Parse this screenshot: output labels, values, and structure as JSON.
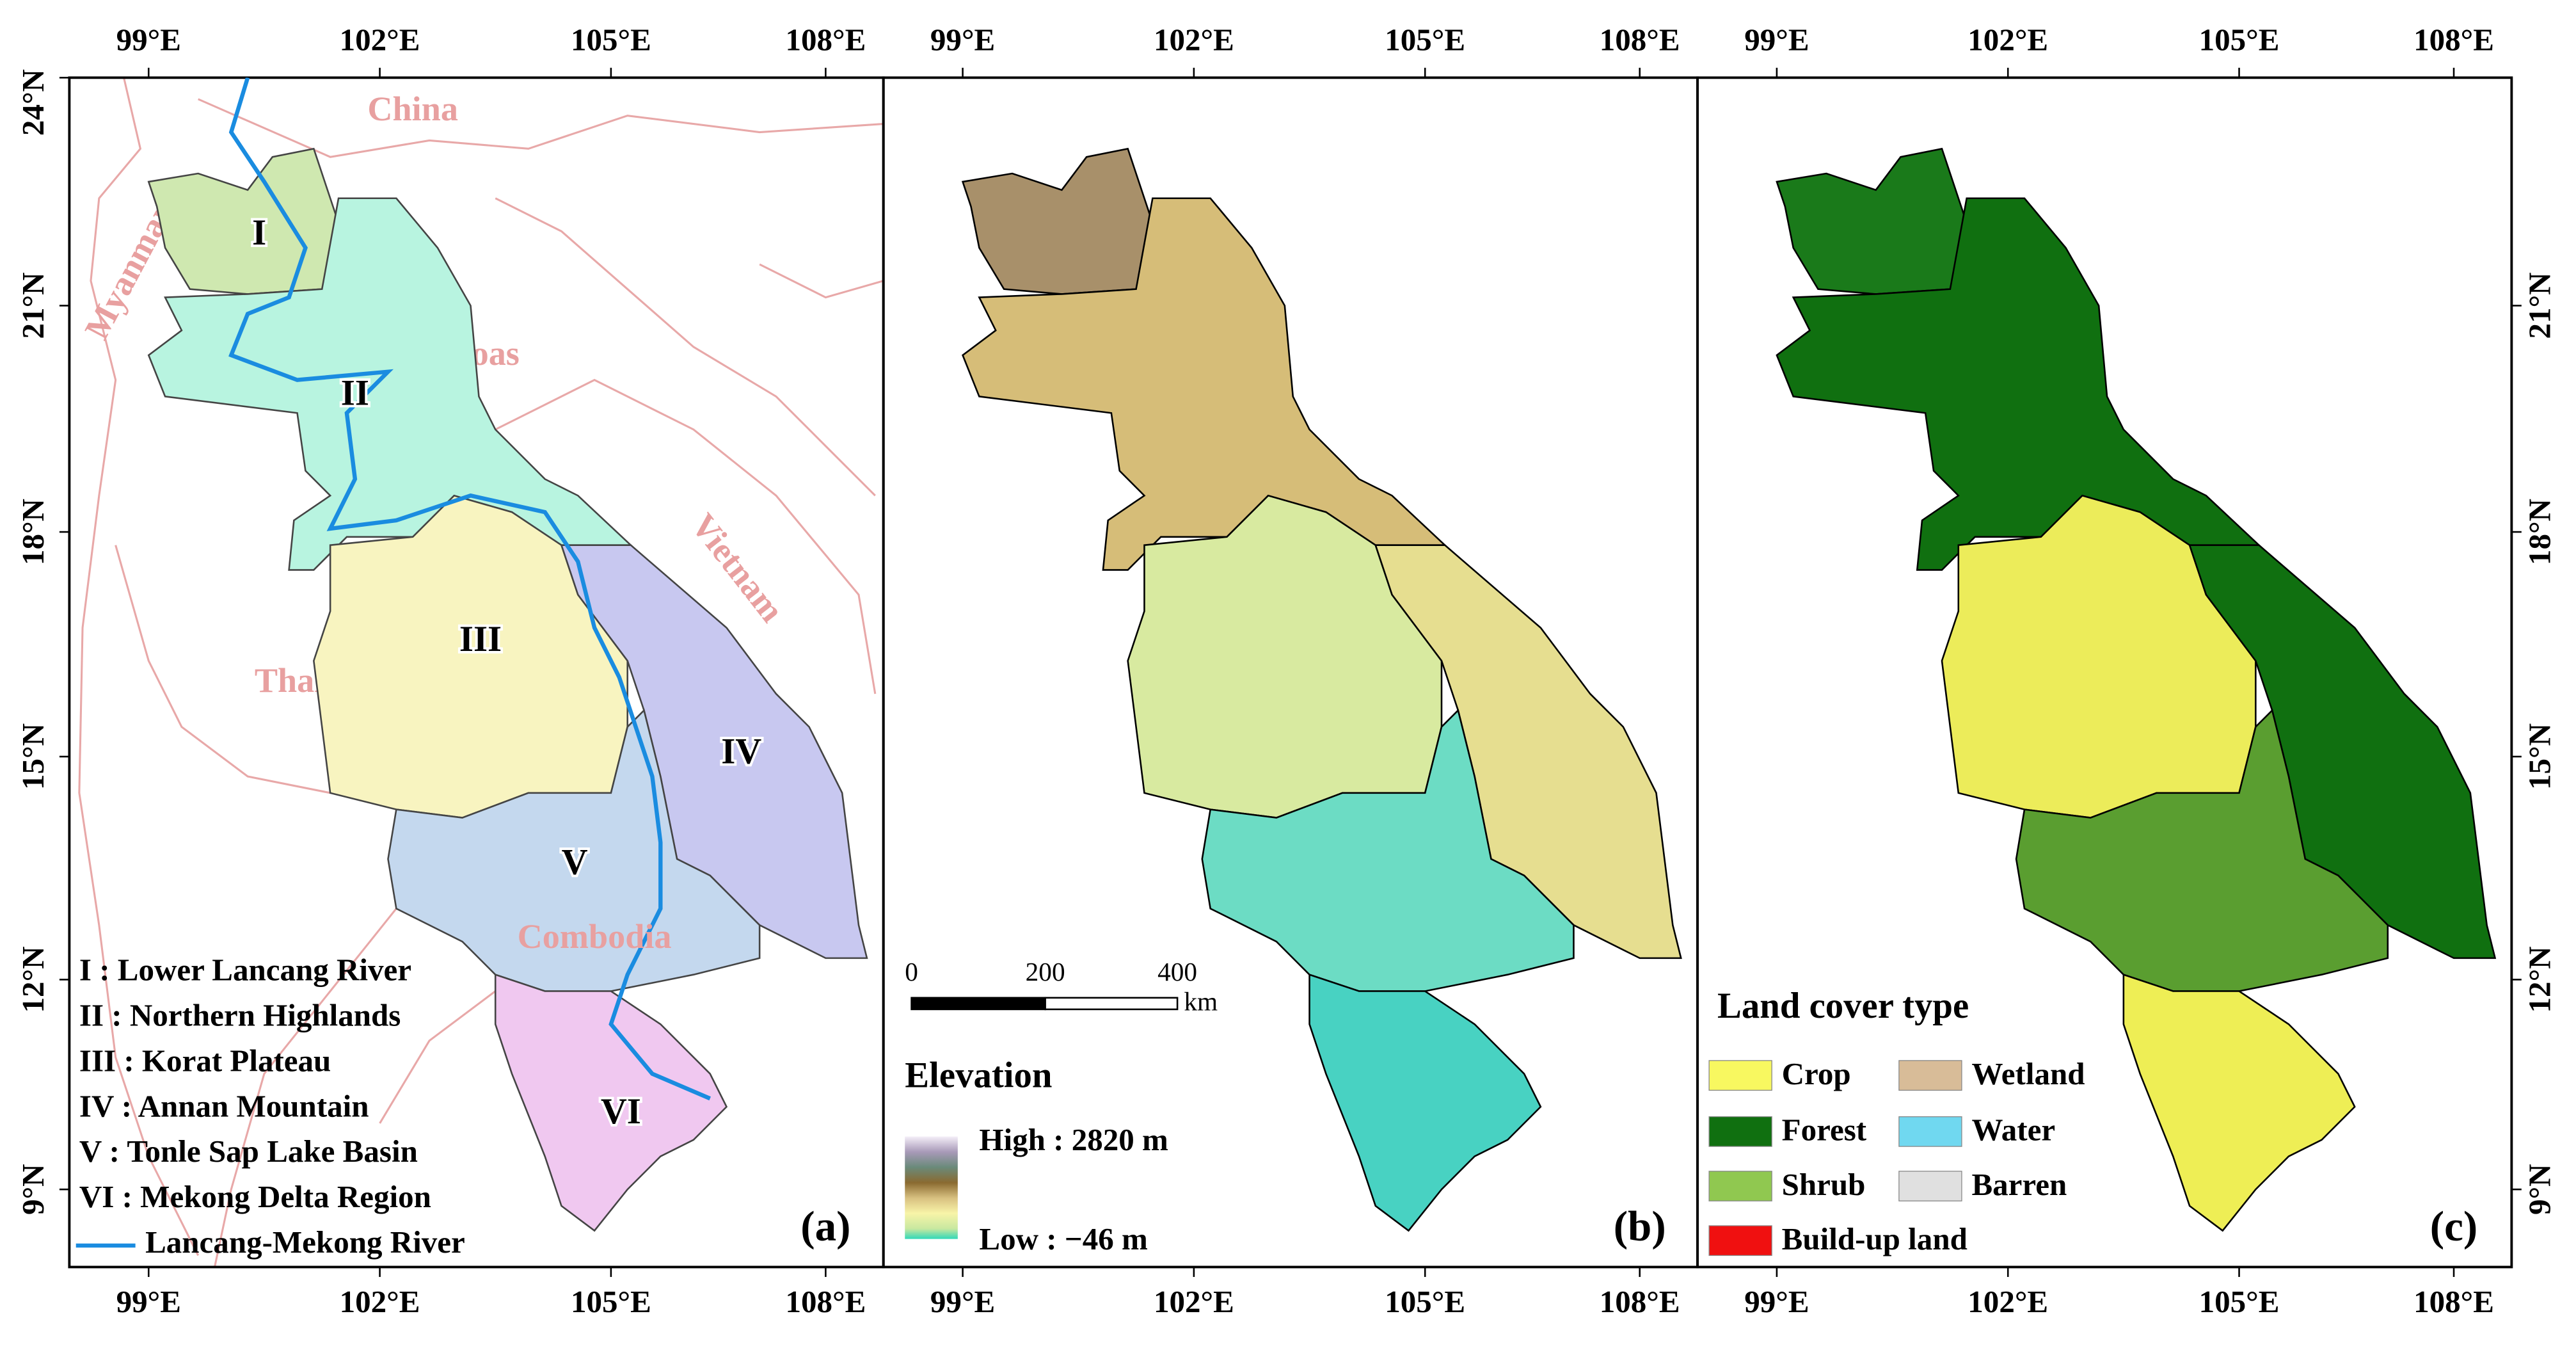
{
  "axes": {
    "lon_labels": [
      "99°E",
      "102°E",
      "105°E",
      "108°E"
    ],
    "lat_labels": [
      "24°N",
      "21°N",
      "18°N",
      "15°N",
      "12°N",
      "9°N"
    ]
  },
  "panel_a": {
    "label": "(a)",
    "countries": [
      "China",
      "Myanmar",
      "Loas",
      "Vietnam",
      "Thailand",
      "Combodia"
    ],
    "regions": [
      "I",
      "II",
      "III",
      "IV",
      "V",
      "VI"
    ],
    "legend": [
      "I : Lower Lancang River",
      "II : Northern Highlands",
      "III : Korat Plateau",
      "IV : Annan Mountain",
      "V : Tonle Sap Lake Basin",
      "VI : Mekong Delta Region",
      "Lancang-Mekong River"
    ]
  },
  "panel_b": {
    "label": "(b)",
    "scale_bar": [
      "0",
      "200",
      "400",
      "km"
    ],
    "legend_title": "Elevation",
    "high": "High : 2820 m",
    "low": "Low : −46 m"
  },
  "panel_c": {
    "label": "(c)",
    "legend_title": "Land cover type",
    "classes": [
      "Crop",
      "Wetland",
      "Forest",
      "Water",
      "Shrub",
      "Barren",
      "Build-up land"
    ]
  }
}
